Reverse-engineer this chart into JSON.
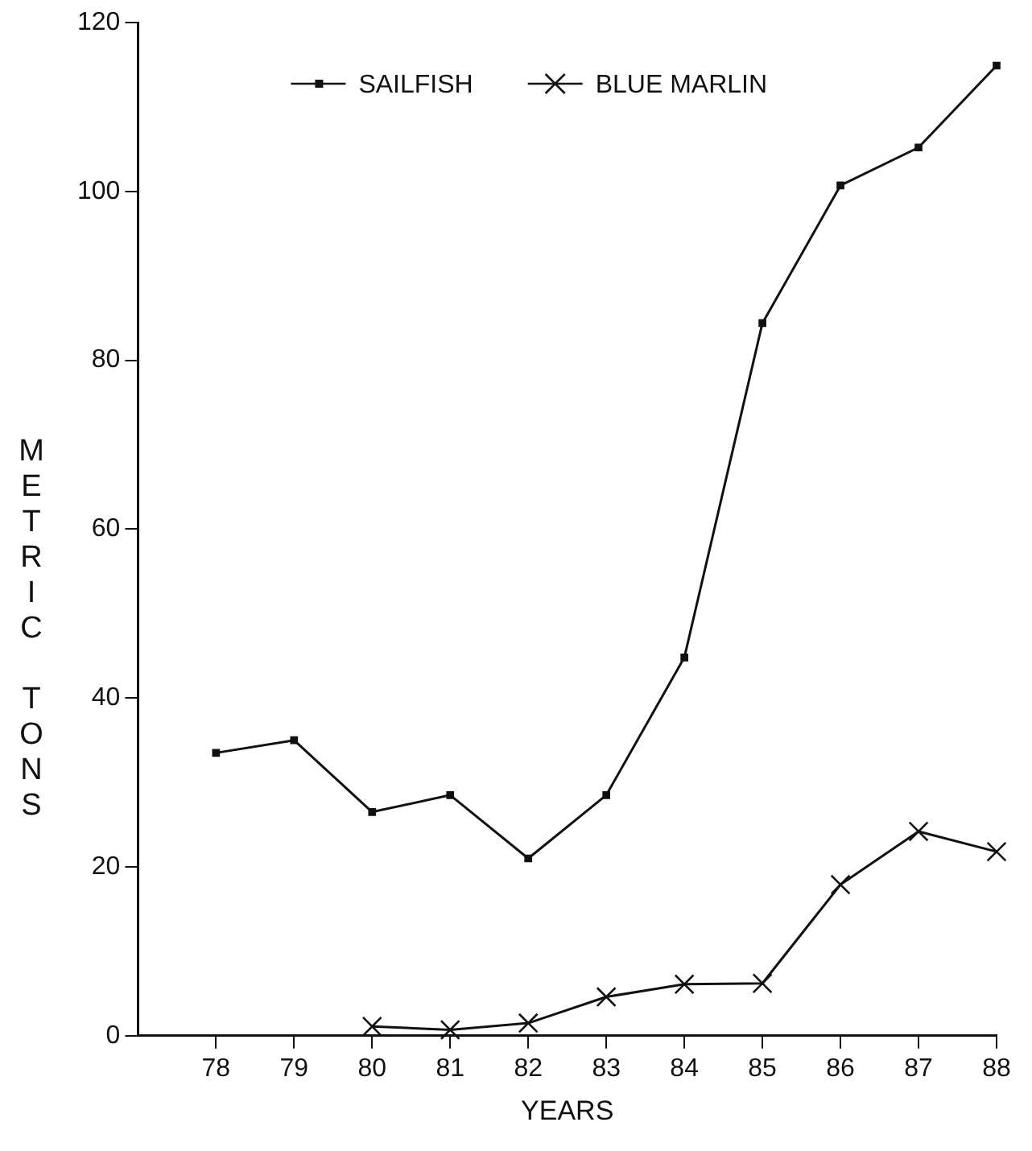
{
  "chart_data": {
    "type": "line",
    "xlabel": "YEARS",
    "ylabel": "METRIC TONS",
    "x": [
      78,
      79,
      80,
      81,
      82,
      83,
      84,
      85,
      86,
      87,
      88
    ],
    "series": [
      {
        "name": "SAILFISH",
        "color": "#111111",
        "marker": "square",
        "values": [
          33.5,
          35,
          26.5,
          28.5,
          21,
          28.5,
          44.8,
          84.4,
          100.7,
          105.2,
          114.9
        ]
      },
      {
        "name": "BLUE MARLIN",
        "color": "#111111",
        "marker": "cross",
        "values": [
          null,
          null,
          1.1,
          0.7,
          1.5,
          4.6,
          6.1,
          6.2,
          17.9,
          24.2,
          21.8
        ]
      }
    ],
    "xlim": [
      77,
      88
    ],
    "xticks": [
      78,
      79,
      80,
      81,
      82,
      83,
      84,
      85,
      86,
      87,
      88
    ],
    "ylim": [
      0,
      120
    ],
    "yticks": [
      0,
      20,
      40,
      60,
      80,
      100,
      120
    ],
    "grid": false,
    "legend": "top",
    "line_style": "solid"
  }
}
